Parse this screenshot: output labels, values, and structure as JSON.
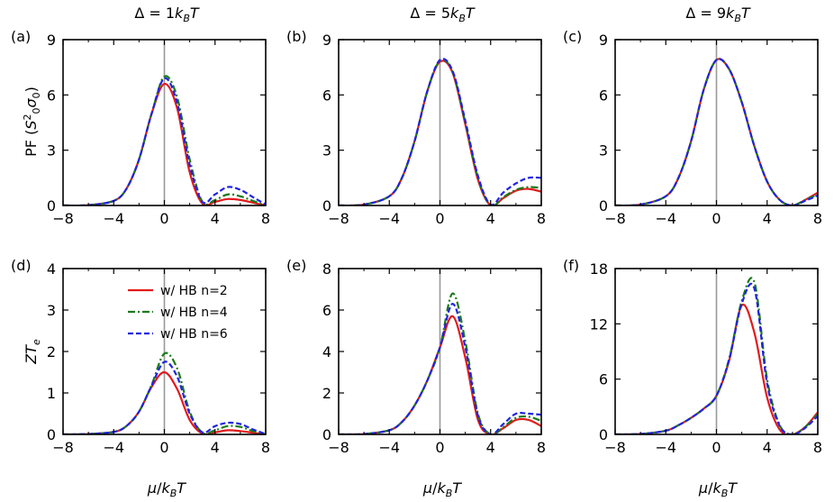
{
  "figure": {
    "column_titles": [
      "Δ = 1k_BT",
      "Δ = 5k_BT",
      "Δ = 9k_BT"
    ],
    "x_label": "μ/k_BT",
    "row_y_labels": [
      "PF (S_0^2σ_0)",
      "ZT_e"
    ],
    "legend": [
      "w/ HB n=2",
      "w/ HB n=4",
      "w/ HB n=6"
    ]
  },
  "colors": {
    "n2": "#e31a1c",
    "n4": "#1a7a1a",
    "n6": "#1f24e0",
    "vline": "#999999"
  },
  "chart_data": [
    {
      "panel": "(a)",
      "type": "line",
      "xlim": [
        -8,
        8
      ],
      "ylim": [
        0,
        9
      ],
      "xticks": [
        -8,
        -4,
        0,
        4,
        8
      ],
      "yticks": [
        0,
        3,
        6,
        9
      ],
      "series": [
        {
          "name": "w/ HB n=2",
          "x": [
            -8,
            -6,
            -4,
            -3,
            -2,
            -1,
            0,
            1,
            2,
            3,
            4,
            5,
            6,
            7,
            8
          ],
          "y": [
            0,
            0.02,
            0.25,
            0.9,
            2.5,
            5.0,
            6.6,
            5.3,
            1.8,
            0.1,
            0.2,
            0.35,
            0.3,
            0.15,
            0
          ]
        },
        {
          "name": "w/ HB n=4",
          "x": [
            -8,
            -6,
            -4,
            -3,
            -2,
            -1,
            0,
            1,
            2,
            3,
            4,
            5,
            6,
            7,
            8
          ],
          "y": [
            0,
            0.02,
            0.25,
            0.9,
            2.5,
            5.0,
            7.0,
            5.9,
            2.5,
            0.2,
            0.3,
            0.6,
            0.5,
            0.25,
            0
          ]
        },
        {
          "name": "w/ HB n=6",
          "x": [
            -8,
            -6,
            -4,
            -3,
            -2,
            -1,
            0,
            1,
            2,
            3,
            4,
            5,
            6,
            7,
            8
          ],
          "y": [
            0,
            0.02,
            0.25,
            0.9,
            2.5,
            5.0,
            6.9,
            5.6,
            2.2,
            0.2,
            0.6,
            1.0,
            0.85,
            0.45,
            0.05
          ]
        }
      ]
    },
    {
      "panel": "(b)",
      "type": "line",
      "xlim": [
        -8,
        8
      ],
      "ylim": [
        0,
        9
      ],
      "xticks": [
        -8,
        -4,
        0,
        4,
        8
      ],
      "yticks": [
        0,
        3,
        6,
        9
      ],
      "series": [
        {
          "name": "w/ HB n=2",
          "x": [
            -8,
            -6,
            -4,
            -3,
            -2,
            -1,
            0,
            1,
            2,
            3,
            4,
            5,
            6,
            7,
            8
          ],
          "y": [
            0,
            0.05,
            0.5,
            1.5,
            3.5,
            6.2,
            7.8,
            7.2,
            4.4,
            1.4,
            0,
            0.4,
            0.8,
            0.9,
            0.75
          ]
        },
        {
          "name": "w/ HB n=4",
          "x": [
            -8,
            -6,
            -4,
            -3,
            -2,
            -1,
            0,
            1,
            2,
            3,
            4,
            5,
            6,
            7,
            8
          ],
          "y": [
            0,
            0.05,
            0.5,
            1.5,
            3.5,
            6.2,
            7.85,
            7.25,
            4.5,
            1.5,
            0,
            0.45,
            0.85,
            1.0,
            0.95
          ]
        },
        {
          "name": "w/ HB n=6",
          "x": [
            -8,
            -6,
            -4,
            -3,
            -2,
            -1,
            0,
            1,
            2,
            3,
            4,
            5,
            6,
            7,
            8
          ],
          "y": [
            0,
            0.05,
            0.5,
            1.5,
            3.5,
            6.2,
            7.9,
            7.3,
            4.6,
            1.6,
            0.05,
            0.7,
            1.2,
            1.5,
            1.5
          ]
        }
      ]
    },
    {
      "panel": "(c)",
      "type": "line",
      "xlim": [
        -8,
        8
      ],
      "ylim": [
        0,
        9
      ],
      "xticks": [
        -8,
        -4,
        0,
        4,
        8
      ],
      "yticks": [
        0,
        3,
        6,
        9
      ],
      "series": [
        {
          "name": "w/ HB n=2",
          "x": [
            -8,
            -6,
            -4,
            -3,
            -2,
            -1,
            0,
            1,
            2,
            3,
            4,
            5,
            6,
            7,
            8
          ],
          "y": [
            0,
            0.05,
            0.5,
            1.5,
            3.5,
            6.3,
            7.9,
            7.4,
            5.6,
            3.2,
            1.3,
            0.3,
            0,
            0.3,
            0.7
          ]
        },
        {
          "name": "w/ HB n=4",
          "x": [
            -8,
            -6,
            -4,
            -3,
            -2,
            -1,
            0,
            1,
            2,
            3,
            4,
            5,
            6,
            7,
            8
          ],
          "y": [
            0,
            0.05,
            0.5,
            1.5,
            3.5,
            6.3,
            7.9,
            7.4,
            5.6,
            3.2,
            1.3,
            0.3,
            0,
            0.3,
            0.6
          ]
        },
        {
          "name": "w/ HB n=6",
          "x": [
            -8,
            -6,
            -4,
            -3,
            -2,
            -1,
            0,
            1,
            2,
            3,
            4,
            5,
            6,
            7,
            8
          ],
          "y": [
            0,
            0.05,
            0.5,
            1.5,
            3.5,
            6.3,
            7.9,
            7.4,
            5.6,
            3.2,
            1.3,
            0.3,
            0,
            0.25,
            0.55
          ]
        }
      ]
    },
    {
      "panel": "(d)",
      "type": "line",
      "xlim": [
        -8,
        8
      ],
      "ylim": [
        0,
        4
      ],
      "xticks": [
        -8,
        -4,
        0,
        4,
        8
      ],
      "yticks": [
        0,
        1,
        2,
        3,
        4
      ],
      "series": [
        {
          "name": "w/ HB n=2",
          "x": [
            -8,
            -6,
            -4,
            -3,
            -2,
            -1,
            0,
            1,
            2,
            3,
            4,
            5,
            6,
            7,
            8
          ],
          "y": [
            0,
            0.01,
            0.06,
            0.2,
            0.55,
            1.15,
            1.5,
            1.1,
            0.35,
            0.02,
            0.05,
            0.1,
            0.08,
            0.04,
            0
          ]
        },
        {
          "name": "w/ HB n=4",
          "x": [
            -8,
            -6,
            -4,
            -3,
            -2,
            -1,
            0,
            1,
            2,
            3,
            4,
            5,
            6,
            7,
            8
          ],
          "y": [
            0,
            0.01,
            0.06,
            0.2,
            0.55,
            1.2,
            1.95,
            1.6,
            0.55,
            0.04,
            0.1,
            0.2,
            0.18,
            0.08,
            0
          ]
        },
        {
          "name": "w/ HB n=6",
          "x": [
            -8,
            -6,
            -4,
            -3,
            -2,
            -1,
            0,
            1,
            2,
            3,
            4,
            5,
            6,
            7,
            8
          ],
          "y": [
            0,
            0.01,
            0.06,
            0.2,
            0.55,
            1.18,
            1.75,
            1.4,
            0.5,
            0.05,
            0.2,
            0.28,
            0.25,
            0.12,
            0.01
          ]
        }
      ]
    },
    {
      "panel": "(e)",
      "type": "line",
      "xlim": [
        -8,
        8
      ],
      "ylim": [
        0,
        8
      ],
      "xticks": [
        -8,
        -4,
        0,
        4,
        8
      ],
      "yticks": [
        0,
        2,
        4,
        6,
        8
      ],
      "series": [
        {
          "name": "w/ HB n=2",
          "x": [
            -8,
            -6,
            -4,
            -3,
            -2,
            -1,
            0,
            1,
            2,
            3,
            4,
            5,
            6,
            7,
            8
          ],
          "y": [
            0,
            0.02,
            0.2,
            0.6,
            1.4,
            2.6,
            4.2,
            5.7,
            3.7,
            0.7,
            0,
            0.3,
            0.7,
            0.7,
            0.4
          ]
        },
        {
          "name": "w/ HB n=4",
          "x": [
            -8,
            -6,
            -4,
            -3,
            -2,
            -1,
            0,
            1,
            2,
            3,
            4,
            5,
            6,
            7,
            8
          ],
          "y": [
            0,
            0.02,
            0.2,
            0.6,
            1.4,
            2.6,
            4.2,
            6.8,
            4.5,
            1.0,
            0,
            0.35,
            0.8,
            0.85,
            0.65
          ]
        },
        {
          "name": "w/ HB n=6",
          "x": [
            -8,
            -6,
            -4,
            -3,
            -2,
            -1,
            0,
            1,
            2,
            3,
            4,
            5,
            6,
            7,
            8
          ],
          "y": [
            0,
            0.02,
            0.2,
            0.6,
            1.4,
            2.6,
            4.2,
            6.3,
            4.2,
            0.9,
            0,
            0.5,
            1.0,
            1.0,
            0.95
          ]
        }
      ]
    },
    {
      "panel": "(f)",
      "type": "line",
      "xlim": [
        -8,
        8
      ],
      "ylim": [
        0,
        18
      ],
      "xticks": [
        -8,
        -4,
        0,
        4,
        8
      ],
      "yticks": [
        0,
        6,
        12,
        18
      ],
      "series": [
        {
          "name": "w/ HB n=2",
          "x": [
            -8,
            -6,
            -4,
            -3,
            -2,
            -1,
            0,
            1,
            2,
            3,
            4,
            5,
            6,
            7,
            8
          ],
          "y": [
            0,
            0.05,
            0.4,
            1.0,
            1.8,
            2.8,
            4.2,
            8.0,
            14.0,
            11.0,
            4.0,
            0.5,
            0,
            0.8,
            2.4
          ]
        },
        {
          "name": "w/ HB n=4",
          "x": [
            -8,
            -6,
            -4,
            -3,
            -2,
            -1,
            0,
            1,
            2,
            3,
            4,
            5,
            6,
            7,
            8
          ],
          "y": [
            0,
            0.05,
            0.4,
            1.0,
            1.8,
            2.8,
            4.2,
            8.2,
            14.5,
            16.5,
            6.0,
            1.0,
            0,
            0.8,
            2.2
          ]
        },
        {
          "name": "w/ HB n=6",
          "x": [
            -8,
            -6,
            -4,
            -3,
            -2,
            -1,
            0,
            1,
            2,
            3,
            4,
            5,
            6,
            7,
            8
          ],
          "y": [
            0,
            0.05,
            0.4,
            1.0,
            1.8,
            2.8,
            4.2,
            8.1,
            14.2,
            15.8,
            5.5,
            0.9,
            0,
            0.7,
            2.0
          ]
        }
      ]
    }
  ]
}
